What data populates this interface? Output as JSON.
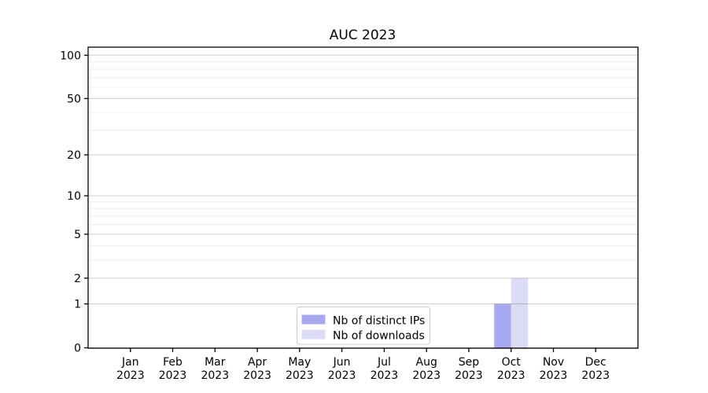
{
  "chart_data": {
    "type": "bar",
    "title": "AUC 2023",
    "categories": [
      "Jan",
      "Feb",
      "Mar",
      "Apr",
      "May",
      "Jun",
      "Jul",
      "Aug",
      "Sep",
      "Oct",
      "Nov",
      "Dec"
    ],
    "category_year": "2023",
    "series": [
      {
        "name": "Nb of distinct IPs",
        "color": "#a8a8f0",
        "values": [
          0,
          0,
          0,
          0,
          0,
          0,
          0,
          0,
          0,
          1,
          0,
          0
        ]
      },
      {
        "name": "Nb of downloads",
        "color": "#dcdcf6",
        "values": [
          0,
          0,
          0,
          0,
          0,
          0,
          0,
          0,
          0,
          2,
          0,
          0
        ]
      }
    ],
    "xlabel": "",
    "ylabel": "",
    "y_axis": {
      "scale": "log1p",
      "range": [
        0,
        100
      ],
      "major_ticks": [
        0,
        1,
        2,
        5,
        10,
        20,
        50,
        100
      ],
      "minor_gridlines": [
        3,
        4,
        6,
        7,
        8,
        9,
        30,
        40,
        60,
        70,
        80,
        90
      ]
    },
    "grid": {
      "enabled": true,
      "major_color": "#cccccc",
      "minor_color": "#ececec"
    },
    "axis_color": "#000000",
    "background_color": "#ffffff",
    "legend": {
      "position": "bottom-center",
      "background": "#ffffff",
      "border_color": "#cccccc",
      "entries": [
        "Nb of distinct IPs",
        "Nb of downloads"
      ]
    }
  }
}
